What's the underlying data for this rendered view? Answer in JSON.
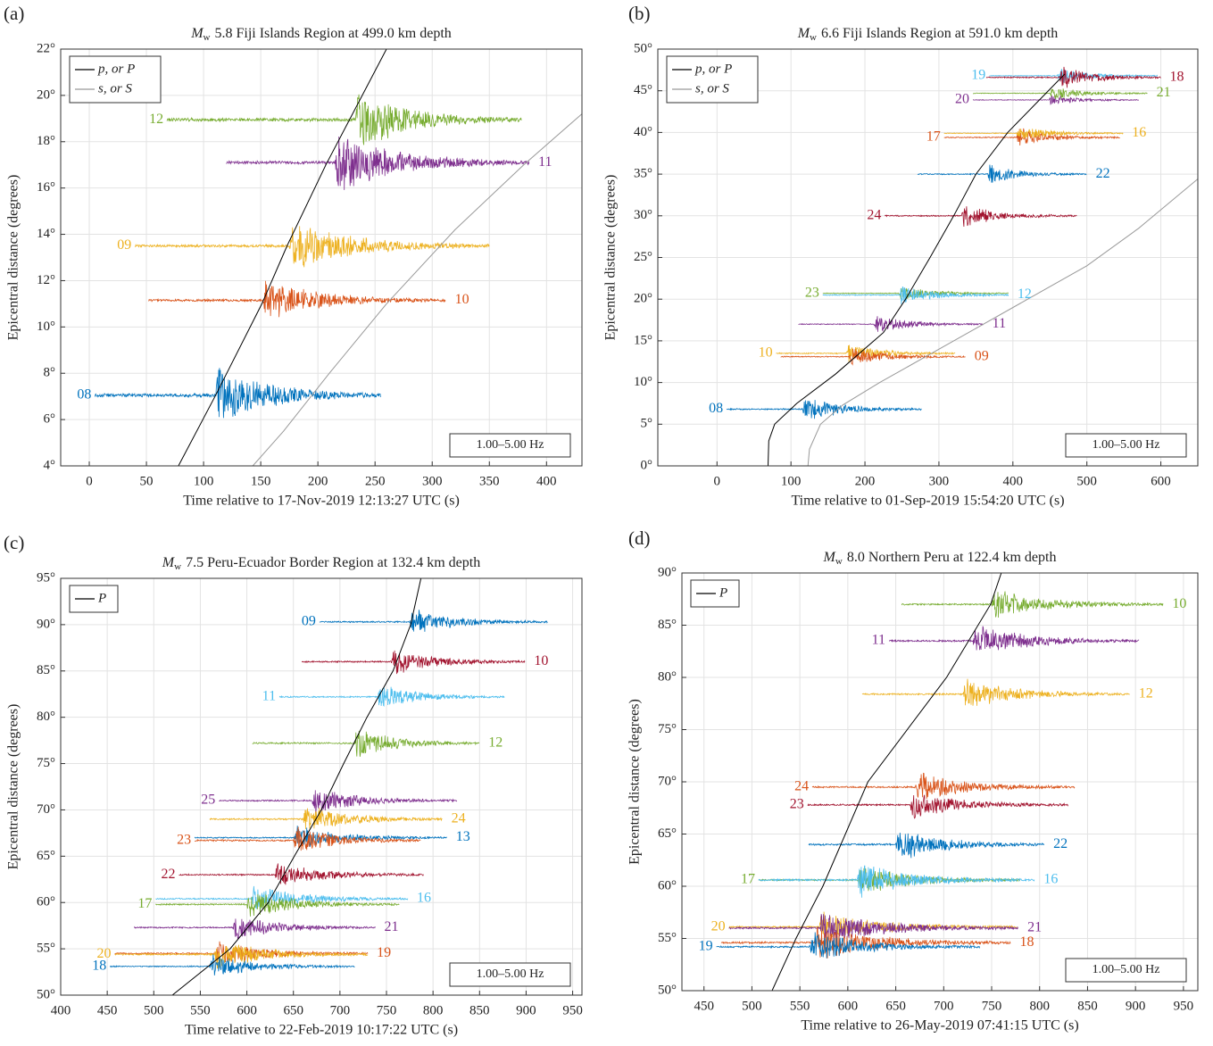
{
  "chart_data": [
    {
      "type": "line",
      "panel_label": "(a)",
      "title_prefix": "M",
      "title_subscript": "w",
      "title": "5.8 Fiji Islands Region at 499.0 km depth",
      "xlabel": "Time relative to 17-Nov-2019 12:13:27 UTC (s)",
      "ylabel": "Epicentral distance (degrees)",
      "filter": "1.00–5.00 Hz",
      "xlim": [
        -25,
        431
      ],
      "ylim": [
        4,
        22
      ],
      "xticks": [
        0,
        50,
        100,
        150,
        200,
        250,
        300,
        350,
        400
      ],
      "yticks": [
        {
          "value": 4,
          "label": "4°"
        },
        {
          "value": 6,
          "label": "6°"
        },
        {
          "value": 8,
          "label": "8°"
        },
        {
          "value": 10,
          "label": "10°"
        },
        {
          "value": 12,
          "label": "12°"
        },
        {
          "value": 14,
          "label": "14°"
        },
        {
          "value": 16,
          "label": "16°"
        },
        {
          "value": 18,
          "label": "18°"
        },
        {
          "value": 20,
          "label": "20°"
        },
        {
          "value": 22,
          "label": "22°"
        }
      ],
      "grid": true,
      "legend": "upper left",
      "arrivals": [
        {
          "name": "p, or P",
          "color": "#000000",
          "x": [
            78,
            110,
            151,
            173,
            207,
            260
          ],
          "y": [
            4,
            7,
            11,
            13.5,
            17,
            22
          ]
        },
        {
          "name": "s, or S",
          "color": "#999999",
          "x": [
            143,
            170,
            210,
            260,
            320,
            380,
            431
          ],
          "y": [
            4,
            5.5,
            8,
            11,
            14.2,
            17,
            19.2
          ]
        }
      ],
      "series": [
        {
          "name": "08",
          "color": "#0072bd",
          "distance": 7.05,
          "start": 5,
          "end": 255,
          "onset": 110,
          "amplitude": 1.5,
          "label_side": "left"
        },
        {
          "name": "10",
          "color": "#d95319",
          "distance": 11.15,
          "start": 52,
          "end": 312,
          "onset": 152,
          "amplitude": 1.0,
          "label_side": "right"
        },
        {
          "name": "09",
          "color": "#edb120",
          "distance": 13.5,
          "start": 40,
          "end": 350,
          "onset": 175,
          "amplitude": 1.2,
          "label_side": "left"
        },
        {
          "name": "11",
          "color": "#7e2f8e",
          "distance": 17.1,
          "start": 120,
          "end": 385,
          "onset": 215,
          "amplitude": 1.4,
          "label_side": "right"
        },
        {
          "name": "12",
          "color": "#77ac30",
          "distance": 18.95,
          "start": 68,
          "end": 378,
          "onset": 233,
          "amplitude": 1.5,
          "label_side": "left"
        }
      ]
    },
    {
      "type": "line",
      "panel_label": "(b)",
      "title_prefix": "M",
      "title_subscript": "w",
      "title": "6.6 Fiji Islands Region at 591.0 km depth",
      "xlabel": "Time relative to 01-Sep-2019 15:54:20 UTC (s)",
      "ylabel": "Epicentral distance (degrees)",
      "filter": "1.00–5.00 Hz",
      "xlim": [
        -80,
        650
      ],
      "ylim": [
        0,
        50
      ],
      "xticks": [
        0,
        100,
        200,
        300,
        400,
        500,
        600
      ],
      "yticks": [
        {
          "value": 0,
          "label": "0°"
        },
        {
          "value": 5,
          "label": "5°"
        },
        {
          "value": 10,
          "label": "10°"
        },
        {
          "value": 15,
          "label": "15°"
        },
        {
          "value": 20,
          "label": "20°"
        },
        {
          "value": 25,
          "label": "25°"
        },
        {
          "value": 30,
          "label": "30°"
        },
        {
          "value": 35,
          "label": "35°"
        },
        {
          "value": 40,
          "label": "40°"
        },
        {
          "value": 45,
          "label": "45°"
        },
        {
          "value": 50,
          "label": "50°"
        }
      ],
      "grid": true,
      "legend": "upper left",
      "arrivals": [
        {
          "name": "p, or P",
          "color": "#000000",
          "x": [
            69,
            70,
            78,
            108,
            160,
            225,
            255,
            288,
            320,
            350,
            393,
            470
          ],
          "y": [
            0,
            3,
            5,
            7.5,
            11,
            16,
            20,
            25,
            30,
            35,
            40,
            47
          ]
        },
        {
          "name": "s, or S",
          "color": "#999999",
          "x": [
            123,
            125,
            140,
            170,
            220,
            280,
            350,
            420,
            500,
            570,
            651
          ],
          "y": [
            0,
            2,
            5,
            7.3,
            10,
            13,
            16.5,
            20,
            24,
            28.5,
            34.5
          ]
        }
      ],
      "series": [
        {
          "name": "08",
          "color": "#0072bd",
          "distance": 6.8,
          "start": 13,
          "end": 277,
          "onset": 115,
          "amplitude": 1.7,
          "label_side": "left"
        },
        {
          "name": "10",
          "color": "#edb120",
          "distance": 13.5,
          "start": 80,
          "end": 322,
          "onset": 175,
          "amplitude": 1.4,
          "label_side": "left"
        },
        {
          "name": "09",
          "color": "#d95319",
          "distance": 13.1,
          "start": 86,
          "end": 336,
          "onset": 178,
          "amplitude": 1.2,
          "label_side": "right"
        },
        {
          "name": "11",
          "color": "#7e2f8e",
          "distance": 17.0,
          "start": 110,
          "end": 360,
          "onset": 212,
          "amplitude": 1.2,
          "label_side": "right"
        },
        {
          "name": "23",
          "color": "#77ac30",
          "distance": 20.7,
          "start": 143,
          "end": 394,
          "onset": 245,
          "amplitude": 1.0,
          "label_side": "left"
        },
        {
          "name": "12",
          "color": "#4dbeee",
          "distance": 20.5,
          "start": 143,
          "end": 394,
          "onset": 245,
          "amplitude": 1.3,
          "label_side": "right"
        },
        {
          "name": "24",
          "color": "#a2142f",
          "distance": 30.0,
          "start": 227,
          "end": 487,
          "onset": 330,
          "amplitude": 1.5,
          "label_side": "left"
        },
        {
          "name": "22",
          "color": "#0072bd",
          "distance": 35.0,
          "start": 271,
          "end": 500,
          "onset": 365,
          "amplitude": 1.3,
          "label_side": "right"
        },
        {
          "name": "17",
          "color": "#d95319",
          "distance": 39.4,
          "start": 307,
          "end": 545,
          "onset": 405,
          "amplitude": 1.3,
          "label_side": "left"
        },
        {
          "name": "16",
          "color": "#edb120",
          "distance": 39.9,
          "start": 307,
          "end": 549,
          "onset": 405,
          "amplitude": 1.0,
          "label_side": "right"
        },
        {
          "name": "20",
          "color": "#7e2f8e",
          "distance": 43.9,
          "start": 346,
          "end": 570,
          "onset": 448,
          "amplitude": 0.8,
          "label_side": "left"
        },
        {
          "name": "21",
          "color": "#77ac30",
          "distance": 44.7,
          "start": 346,
          "end": 582,
          "onset": 450,
          "amplitude": 1.0,
          "label_side": "right"
        },
        {
          "name": "19",
          "color": "#4dbeee",
          "distance": 46.8,
          "start": 368,
          "end": 596,
          "onset": 460,
          "amplitude": 1.0,
          "label_side": "left"
        },
        {
          "name": "18",
          "color": "#a2142f",
          "distance": 46.6,
          "start": 364,
          "end": 600,
          "onset": 462,
          "amplitude": 1.6,
          "label_side": "right"
        }
      ]
    },
    {
      "type": "line",
      "panel_label": "(c)",
      "title_prefix": "M",
      "title_subscript": "w",
      "title": "7.5 Peru-Ecuador Border Region at 132.4 km depth",
      "xlabel": "Time relative to 22-Feb-2019 10:17:22 UTC (s)",
      "ylabel": "Epicentral distance (degrees)",
      "filter": "1.00–5.00 Hz",
      "xlim": [
        400,
        960
      ],
      "ylim": [
        50,
        95
      ],
      "xticks": [
        400,
        450,
        500,
        550,
        600,
        650,
        700,
        750,
        800,
        850,
        900,
        950
      ],
      "yticks": [
        {
          "value": 50,
          "label": "50°"
        },
        {
          "value": 55,
          "label": "55°"
        },
        {
          "value": 60,
          "label": "60°"
        },
        {
          "value": 65,
          "label": "65°"
        },
        {
          "value": 70,
          "label": "70°"
        },
        {
          "value": 75,
          "label": "75°"
        },
        {
          "value": 80,
          "label": "80°"
        },
        {
          "value": 85,
          "label": "85°"
        },
        {
          "value": 90,
          "label": "90°"
        },
        {
          "value": 95,
          "label": "95°"
        }
      ],
      "grid": true,
      "legend": "upper left",
      "arrivals": [
        {
          "name": "P",
          "color": "#000000",
          "x": [
            520,
            582,
            623,
            651,
            680,
            704,
            729,
            757,
            776,
            787
          ],
          "y": [
            50,
            55,
            60,
            65,
            70,
            75,
            80,
            85,
            90,
            95
          ]
        }
      ],
      "series": [
        {
          "name": "09",
          "color": "#0072bd",
          "distance": 90.3,
          "start": 678,
          "end": 923,
          "onset": 775,
          "amplitude": 1.6,
          "label_side": "left"
        },
        {
          "name": "10",
          "color": "#a2142f",
          "distance": 86.0,
          "start": 659,
          "end": 899,
          "onset": 755,
          "amplitude": 1.6,
          "label_side": "right"
        },
        {
          "name": "11",
          "color": "#4dbeee",
          "distance": 82.2,
          "start": 635,
          "end": 877,
          "onset": 740,
          "amplitude": 1.6,
          "label_side": "left"
        },
        {
          "name": "12",
          "color": "#77ac30",
          "distance": 77.2,
          "start": 606,
          "end": 850,
          "onset": 715,
          "amplitude": 1.8,
          "label_side": "right"
        },
        {
          "name": "25",
          "color": "#7e2f8e",
          "distance": 71.0,
          "start": 570,
          "end": 826,
          "onset": 670,
          "amplitude": 1.6,
          "label_side": "left"
        },
        {
          "name": "24",
          "color": "#edb120",
          "distance": 69.0,
          "start": 560,
          "end": 810,
          "onset": 660,
          "amplitude": 1.8,
          "label_side": "right"
        },
        {
          "name": "13",
          "color": "#0072bd",
          "distance": 67.0,
          "start": 544,
          "end": 815,
          "onset": 650,
          "amplitude": 1.4,
          "label_side": "right"
        },
        {
          "name": "23",
          "color": "#d95319",
          "distance": 66.7,
          "start": 544,
          "end": 787,
          "onset": 650,
          "amplitude": 1.8,
          "label_side": "left"
        },
        {
          "name": "22",
          "color": "#a2142f",
          "distance": 63.0,
          "start": 527,
          "end": 790,
          "onset": 630,
          "amplitude": 1.6,
          "label_side": "left"
        },
        {
          "name": "16",
          "color": "#4dbeee",
          "distance": 60.4,
          "start": 502,
          "end": 773,
          "onset": 605,
          "amplitude": 1.6,
          "label_side": "right"
        },
        {
          "name": "17",
          "color": "#77ac30",
          "distance": 59.8,
          "start": 502,
          "end": 764,
          "onset": 600,
          "amplitude": 1.6,
          "label_side": "left"
        },
        {
          "name": "21",
          "color": "#7e2f8e",
          "distance": 57.3,
          "start": 479,
          "end": 738,
          "onset": 585,
          "amplitude": 1.5,
          "label_side": "right"
        },
        {
          "name": "19",
          "color": "#d95319",
          "distance": 54.5,
          "start": 458,
          "end": 730,
          "onset": 565,
          "amplitude": 1.6,
          "label_side": "right"
        },
        {
          "name": "20",
          "color": "#edb120",
          "distance": 54.4,
          "start": 458,
          "end": 730,
          "onset": 565,
          "amplitude": 1.8,
          "label_side": "left"
        },
        {
          "name": "18",
          "color": "#0072bd",
          "distance": 53.1,
          "start": 453,
          "end": 716,
          "onset": 560,
          "amplitude": 1.4,
          "label_side": "left"
        }
      ]
    },
    {
      "type": "line",
      "panel_label": "(d)",
      "title_prefix": "M",
      "title_subscript": "w",
      "title": "8.0 Northern Peru at 122.4 km depth",
      "xlabel": "Time relative to 26-May-2019 07:41:15 UTC (s)",
      "ylabel": "Epicentral distance (degrees)",
      "filter": "1.00–5.00 Hz",
      "xlim": [
        427,
        965
      ],
      "ylim": [
        50,
        90
      ],
      "xticks": [
        450,
        500,
        550,
        600,
        650,
        700,
        750,
        800,
        850,
        900,
        950
      ],
      "yticks": [
        {
          "value": 50,
          "label": "50°"
        },
        {
          "value": 55,
          "label": "55°"
        },
        {
          "value": 60,
          "label": "60°"
        },
        {
          "value": 65,
          "label": "65°"
        },
        {
          "value": 70,
          "label": "70°"
        },
        {
          "value": 75,
          "label": "75°"
        },
        {
          "value": 80,
          "label": "80°"
        },
        {
          "value": 85,
          "label": "85°"
        },
        {
          "value": 90,
          "label": "90°"
        }
      ],
      "grid": true,
      "legend": "upper left",
      "arrivals": [
        {
          "name": "P",
          "color": "#000000",
          "x": [
            521,
            546,
            574,
            621,
            703,
            749,
            760
          ],
          "y": [
            50,
            55,
            60,
            70,
            80,
            87,
            90
          ]
        }
      ],
      "series": [
        {
          "name": "10",
          "color": "#77ac30",
          "distance": 87.0,
          "start": 656,
          "end": 929,
          "onset": 750,
          "amplitude": 1.6,
          "label_side": "right"
        },
        {
          "name": "11",
          "color": "#7e2f8e",
          "distance": 83.5,
          "start": 643,
          "end": 904,
          "onset": 730,
          "amplitude": 1.8,
          "label_side": "left"
        },
        {
          "name": "12",
          "color": "#edb120",
          "distance": 78.4,
          "start": 615,
          "end": 894,
          "onset": 720,
          "amplitude": 1.6,
          "label_side": "right"
        },
        {
          "name": "24",
          "color": "#d95319",
          "distance": 69.5,
          "start": 563,
          "end": 837,
          "onset": 670,
          "amplitude": 1.6,
          "label_side": "left"
        },
        {
          "name": "23",
          "color": "#a2142f",
          "distance": 67.8,
          "start": 558,
          "end": 830,
          "onset": 665,
          "amplitude": 1.5,
          "label_side": "left"
        },
        {
          "name": "22",
          "color": "#0072bd",
          "distance": 64.0,
          "start": 559,
          "end": 805,
          "onset": 650,
          "amplitude": 1.8,
          "label_side": "right"
        },
        {
          "name": "17",
          "color": "#77ac30",
          "distance": 60.6,
          "start": 507,
          "end": 780,
          "onset": 610,
          "amplitude": 1.6,
          "label_side": "left"
        },
        {
          "name": "16",
          "color": "#4dbeee",
          "distance": 60.6,
          "start": 507,
          "end": 795,
          "onset": 610,
          "amplitude": 1.8,
          "label_side": "right"
        },
        {
          "name": "20",
          "color": "#edb120",
          "distance": 56.1,
          "start": 476,
          "end": 777,
          "onset": 570,
          "amplitude": 1.6,
          "label_side": "left"
        },
        {
          "name": "21",
          "color": "#7e2f8e",
          "distance": 56.0,
          "start": 476,
          "end": 778,
          "onset": 570,
          "amplitude": 1.8,
          "label_side": "right"
        },
        {
          "name": "18",
          "color": "#d95319",
          "distance": 54.6,
          "start": 468,
          "end": 770,
          "onset": 565,
          "amplitude": 1.9,
          "label_side": "right"
        },
        {
          "name": "19",
          "color": "#0072bd",
          "distance": 54.2,
          "start": 463,
          "end": 738,
          "onset": 560,
          "amplitude": 1.6,
          "label_side": "left"
        }
      ]
    }
  ]
}
